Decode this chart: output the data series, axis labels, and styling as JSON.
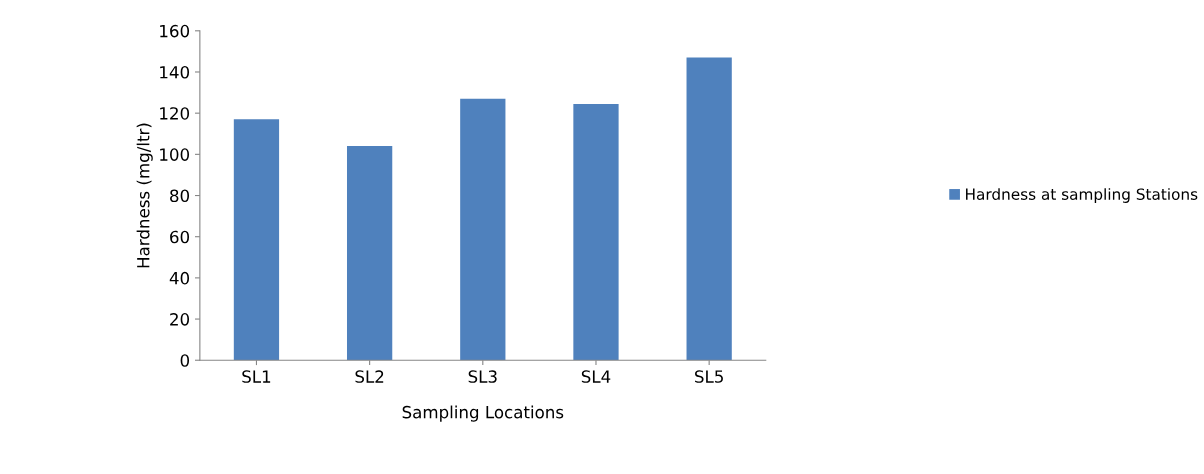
{
  "chart_data": {
    "type": "bar",
    "xlabel": "Sampling Locations",
    "ylabel": "Hardness (mg/ltr)",
    "categories": [
      "SL1",
      "SL2",
      "SL3",
      "SL4",
      "SL5"
    ],
    "series": [
      {
        "name": "Hardness at sampling Stations",
        "color": "#4f81bd",
        "values": [
          117,
          104,
          127,
          124.5,
          147
        ]
      }
    ],
    "ylim": [
      0,
      160
    ],
    "yticks": [
      0,
      20,
      40,
      60,
      80,
      100,
      120,
      140,
      160
    ],
    "grid": false,
    "legend": "right"
  }
}
